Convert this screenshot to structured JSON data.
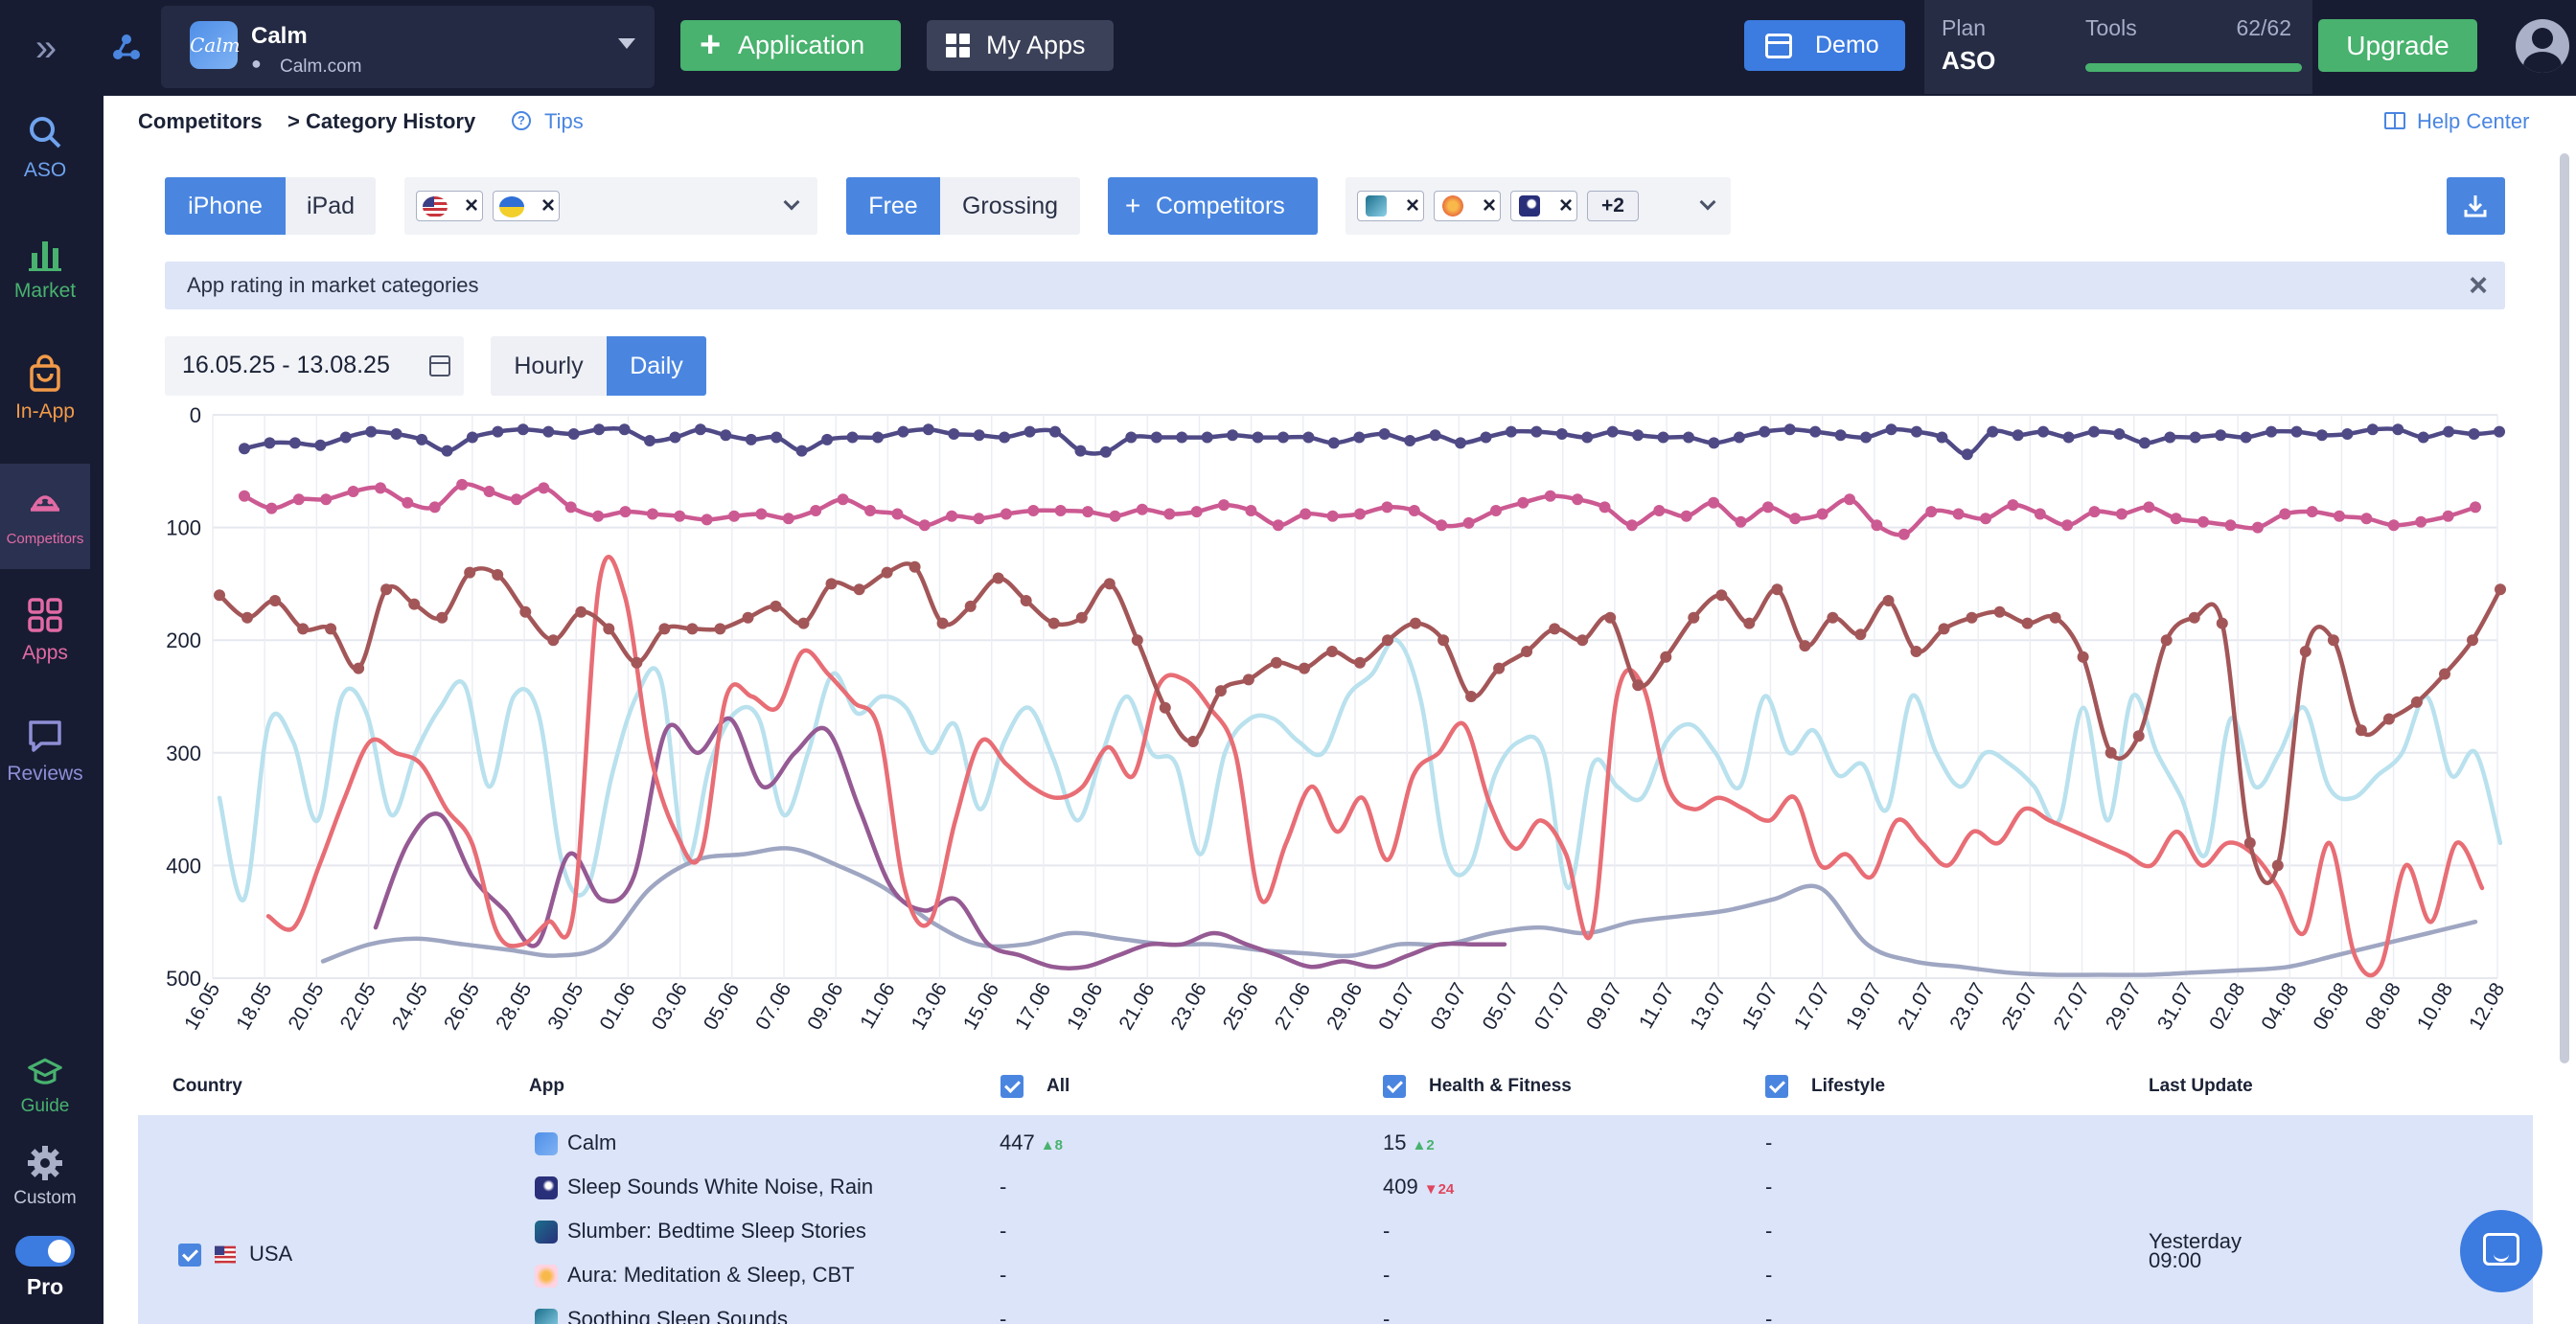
{
  "colors": {
    "accent": "#4a86e0",
    "green": "#48b26e",
    "dark": "#171c33",
    "highlight": "#dbe4f8",
    "up": "#48b26e",
    "down": "#e0455e"
  },
  "topbar": {
    "app": {
      "icon_text": "Calm",
      "name": "Calm",
      "domain": "Calm.com",
      "platform_icon": "apple-icon"
    },
    "application_label": "Application",
    "myapps_label": "My Apps",
    "demo_label": "Demo",
    "plan": {
      "label": "Plan",
      "value": "ASO"
    },
    "tools": {
      "label": "Tools",
      "value": "62/62",
      "used_fraction": 1.0
    },
    "upgrade_label": "Upgrade"
  },
  "sidebar": {
    "items": [
      {
        "id": "aso",
        "label": "ASO",
        "icon": "search-icon",
        "color": "#6fa3ee"
      },
      {
        "id": "market",
        "label": "Market",
        "icon": "bar-chart-icon",
        "color": "#48b26e"
      },
      {
        "id": "inapp",
        "label": "In-App",
        "icon": "shopping-bag-icon",
        "color": "#f29a48"
      },
      {
        "id": "competitors",
        "label": "Competitors",
        "icon": "competitors-icon",
        "color": "#e26aa4",
        "active": true
      },
      {
        "id": "apps",
        "label": "Apps",
        "icon": "apps-grid-icon",
        "color": "#e26aa4"
      },
      {
        "id": "reviews",
        "label": "Reviews",
        "icon": "chat-icon",
        "color": "#8e8ed6"
      }
    ],
    "guide_label": "Guide",
    "custom_label": "Custom",
    "pro_label": "Pro"
  },
  "breadcrumbs": {
    "first": "Competitors",
    "second": "> Category History"
  },
  "tips_label": "Tips",
  "help_label": "Help Center",
  "filters": {
    "device": [
      "iPhone",
      "iPad"
    ],
    "device_selected": "iPhone",
    "countries": [
      "us-flag",
      "ua-flag"
    ],
    "price": [
      "Free",
      "Grossing"
    ],
    "price_selected": "Free",
    "competitors_label": "Competitors",
    "competitor_more": "+2"
  },
  "banner_text": "App rating in market categories",
  "date_range": "16.05.25 - 13.08.25",
  "granularity": [
    "Hourly",
    "Daily"
  ],
  "granularity_selected": "Daily",
  "chart_data": {
    "type": "line",
    "y_axis": {
      "ticks": [
        "0",
        "100",
        "200",
        "300",
        "400",
        "500"
      ],
      "min": 0,
      "max": 500,
      "inverted": true
    },
    "x_ticks": [
      "16.05",
      "18.05",
      "20.05",
      "22.05",
      "24.05",
      "26.05",
      "28.05",
      "30.05",
      "01.06",
      "03.06",
      "05.06",
      "07.06",
      "09.06",
      "11.06",
      "13.06",
      "15.06",
      "17.06",
      "19.06",
      "21.06",
      "23.06",
      "25.06",
      "27.06",
      "29.06",
      "01.07",
      "03.07",
      "05.07",
      "07.07",
      "09.07",
      "11.07",
      "13.07",
      "15.07",
      "17.07",
      "19.07",
      "21.07",
      "23.07",
      "25.07",
      "27.07",
      "29.07",
      "31.07",
      "02.08",
      "04.08",
      "06.08",
      "08.08",
      "10.08",
      "12.08"
    ],
    "grid": true,
    "series": [
      {
        "color": "#4f4a86",
        "values": [
          30,
          25,
          25,
          27,
          20,
          15,
          17,
          22,
          32,
          20,
          15,
          13,
          15,
          17,
          13,
          13,
          23,
          20,
          13,
          18,
          22,
          20,
          32,
          22,
          20,
          20,
          15,
          13,
          17,
          18,
          20,
          15,
          15,
          32,
          33,
          20,
          20,
          20,
          20,
          18,
          20,
          20,
          20,
          25,
          20,
          17,
          23,
          18,
          25,
          20,
          15,
          15,
          17,
          20,
          15,
          18,
          20,
          20,
          25,
          20,
          15,
          13,
          15,
          18,
          20,
          13,
          15,
          20,
          35,
          15,
          18,
          15,
          20,
          15,
          17,
          25,
          20,
          20,
          18,
          20,
          15,
          15,
          18,
          17,
          13,
          13,
          20,
          15,
          17,
          15
        ]
      },
      {
        "color": "#cc5a92",
        "values": [
          72,
          83,
          75,
          75,
          68,
          65,
          78,
          82,
          62,
          68,
          75,
          65,
          82,
          90,
          86,
          88,
          90,
          93,
          90,
          88,
          92,
          85,
          75,
          85,
          88,
          98,
          90,
          92,
          88,
          85,
          85,
          86,
          90,
          84,
          88,
          86,
          80,
          85,
          98,
          88,
          90,
          88,
          82,
          85,
          98,
          96,
          85,
          78,
          72,
          75,
          82,
          98,
          85,
          90,
          78,
          95,
          82,
          92,
          88,
          75,
          98,
          106,
          86,
          88,
          92,
          80,
          88,
          98,
          86,
          88,
          82,
          92,
          95,
          98,
          100,
          88,
          86,
          90,
          92,
          98,
          95,
          90,
          82
        ]
      },
      {
        "color": "#a35658",
        "values": [
          160,
          180,
          165,
          190,
          190,
          225,
          155,
          168,
          180,
          140,
          142,
          175,
          200,
          175,
          190,
          220,
          190,
          190,
          190,
          180,
          170,
          185,
          150,
          155,
          140,
          135,
          185,
          170,
          145,
          165,
          185,
          180,
          150,
          200,
          260,
          290,
          245,
          235,
          220,
          225,
          210,
          220,
          200,
          185,
          200,
          250,
          225,
          210,
          190,
          200,
          180,
          240,
          215,
          180,
          160,
          185,
          155,
          205,
          180,
          195,
          165,
          210,
          190,
          180,
          175,
          185,
          180,
          215,
          300,
          285,
          200,
          180,
          185,
          380,
          400,
          210,
          200,
          280,
          270,
          255,
          230,
          200,
          155
        ]
      },
      {
        "color": "#b9e1ee",
        "values": [
          340,
          430,
          275,
          290,
          360,
          250,
          265,
          355,
          300,
          260,
          240,
          330,
          250,
          265,
          400,
          420,
          320,
          250,
          235,
          395,
          310,
          265,
          270,
          355,
          300,
          230,
          265,
          250,
          260,
          300,
          275,
          350,
          290,
          260,
          305,
          360,
          300,
          250,
          300,
          310,
          390,
          300,
          270,
          270,
          290,
          300,
          250,
          230,
          200,
          255,
          390,
          400,
          320,
          290,
          300,
          420,
          310,
          330,
          340,
          290,
          275,
          300,
          330,
          250,
          300,
          280,
          320,
          310,
          350,
          250,
          300,
          330,
          300,
          310,
          330,
          360,
          260,
          360,
          250,
          300,
          340,
          390,
          270,
          330,
          300,
          260,
          330,
          340,
          320,
          300,
          250,
          320,
          300,
          380
        ]
      },
      {
        "color": "#e86d75",
        "values": [
          445,
          455,
          400,
          340,
          290,
          300,
          310,
          350,
          380,
          460,
          470,
          450,
          440,
          150,
          160,
          300,
          370,
          390,
          250,
          250,
          260,
          210,
          230,
          255,
          280,
          420,
          450,
          360,
          290,
          310,
          330,
          340,
          330,
          295,
          320,
          240,
          235,
          260,
          300,
          430,
          380,
          330,
          370,
          340,
          395,
          320,
          300,
          275,
          345,
          385,
          360,
          390,
          460,
          250,
          240,
          330,
          350,
          340,
          350,
          360,
          340,
          400,
          390,
          410,
          360,
          380,
          400,
          370,
          380,
          350,
          360,
          370,
          380,
          390,
          400,
          370,
          400,
          380,
          390,
          420,
          460,
          380,
          480,
          490,
          400,
          450,
          380,
          420
        ]
      },
      {
        "color": "#955a93",
        "values": [
          455,
          380,
          355,
          410,
          440,
          470,
          390,
          430,
          410,
          280,
          300,
          270,
          330,
          300,
          280,
          350,
          420,
          440,
          430,
          470,
          480,
          490,
          490,
          480,
          470,
          470,
          460,
          470,
          480,
          490,
          485,
          490,
          480,
          470,
          470,
          470
        ]
      },
      {
        "color": "#9ea6c2",
        "values": [
          485,
          470,
          465,
          470,
          475,
          480,
          470,
          420,
          395,
          390,
          385,
          400,
          420,
          450,
          470,
          470,
          460,
          465,
          470,
          470,
          475,
          478,
          480,
          470,
          470,
          460,
          455,
          460,
          450,
          445,
          440,
          430,
          420,
          470,
          485,
          490,
          495,
          497,
          497,
          497,
          495,
          493,
          490,
          480,
          470,
          460,
          450
        ]
      }
    ]
  },
  "table": {
    "headers": {
      "country": "Country",
      "app": "App",
      "all": "All",
      "health": "Health & Fitness",
      "lifestyle": "Lifestyle",
      "last_update": "Last Update"
    },
    "country": "USA",
    "last_update": "Yesterday\n09:00",
    "rows": [
      {
        "app": "Calm",
        "all": "447",
        "all_delta": "8",
        "all_dir": "up",
        "health": "15",
        "health_delta": "2",
        "health_dir": "up",
        "lifestyle": "-"
      },
      {
        "app": "Sleep Sounds White Noise, Rain",
        "all": "-",
        "health": "409",
        "health_delta": "24",
        "health_dir": "down",
        "lifestyle": "-"
      },
      {
        "app": "Slumber: Bedtime Sleep Stories",
        "all": "-",
        "health": "-",
        "lifestyle": "-"
      },
      {
        "app": "Aura: Meditation & Sleep, CBT",
        "all": "-",
        "health": "-",
        "lifestyle": "-"
      },
      {
        "app": "Soothing Sleep Sounds",
        "all": "-",
        "health": "-",
        "lifestyle": "-"
      }
    ]
  }
}
